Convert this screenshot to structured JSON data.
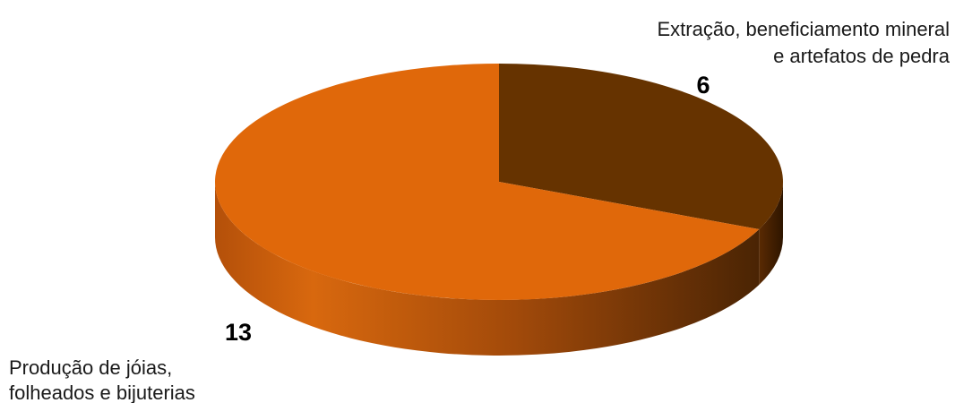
{
  "chart_data": {
    "type": "pie",
    "style": "3d",
    "title": "",
    "slices": [
      {
        "label_lines": [
          "Extração, beneficiamento mineral",
          "e artefatos de pedra"
        ],
        "value": 6,
        "value_text": "6",
        "color": "#663300",
        "side_color_light": "#6e3a08",
        "side_color_dark": "#3d1c00"
      },
      {
        "label_lines": [
          "Produção de jóias,",
          "folheados e bijuterias"
        ],
        "value": 13,
        "value_text": "13",
        "color": "#e0680a",
        "side_color_light": "#c45c0c",
        "side_color_dark": "#5a2c06"
      }
    ],
    "legend": "none"
  }
}
